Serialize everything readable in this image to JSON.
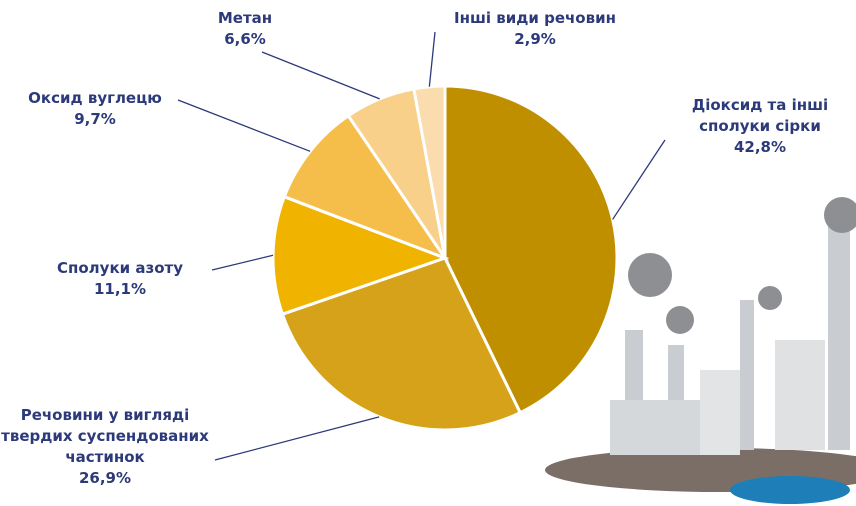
{
  "chart_data": {
    "type": "pie",
    "categories": [
      "Діоксид та інші сполуки сірки",
      "Речовини у вигляді твердих суспендованих частинок",
      "Сполуки азоту",
      "Оксид вуглецю",
      "Метан",
      "Інші види речовин"
    ],
    "values": [
      42.8,
      26.9,
      11.1,
      9.7,
      6.6,
      2.9
    ],
    "value_labels": [
      "42,8%",
      "26,9%",
      "11,1%",
      "9,7%",
      "6,6%",
      "2,9%"
    ],
    "colors": [
      "#bf8f00",
      "#d6a21a",
      "#f0b400",
      "#f5be4a",
      "#f8d08a",
      "#fadcae"
    ]
  }
}
